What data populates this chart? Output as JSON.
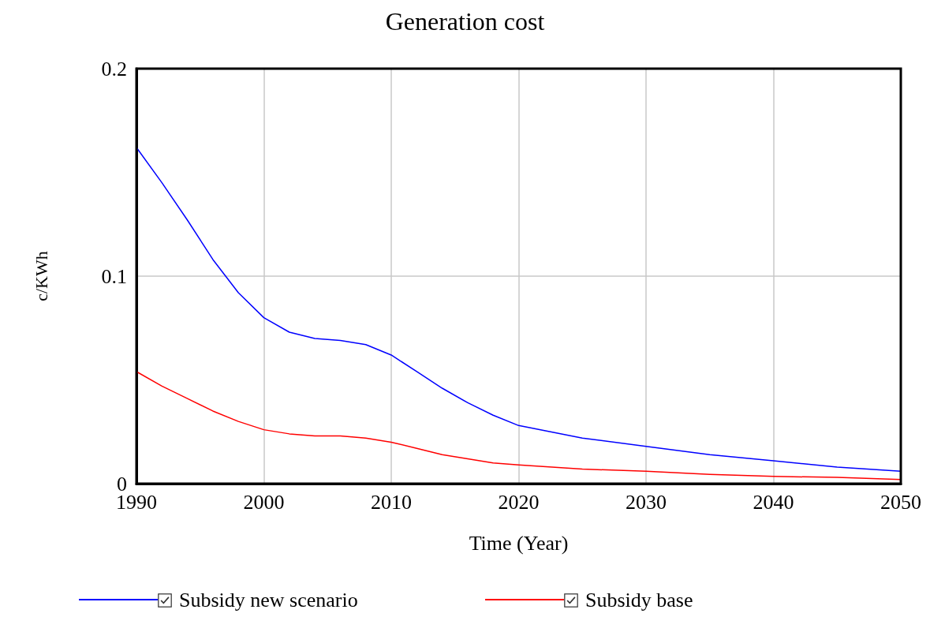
{
  "chart_data": {
    "type": "line",
    "title": "Generation cost",
    "xlabel": "Time (Year)",
    "ylabel": "c/KWh",
    "xlim": [
      1990,
      2050
    ],
    "xticks": [
      1990,
      2000,
      2010,
      2020,
      2030,
      2040,
      2050
    ],
    "ylim": [
      0,
      0.2
    ],
    "yticks": [
      0,
      0.1,
      0.2
    ],
    "grid": true,
    "legend": "bottom",
    "marker": "none",
    "line_style": "solid",
    "x": [
      1990,
      1992,
      1994,
      1996,
      1998,
      2000,
      2002,
      2004,
      2006,
      2008,
      2010,
      2012,
      2014,
      2016,
      2018,
      2020,
      2025,
      2030,
      2035,
      2040,
      2045,
      2050
    ],
    "series": [
      {
        "name": "Subsidy new scenario",
        "color": "#0000ff",
        "values": [
          0.162,
          0.145,
          0.127,
          0.108,
          0.092,
          0.08,
          0.073,
          0.07,
          0.069,
          0.067,
          0.062,
          0.054,
          0.046,
          0.039,
          0.033,
          0.028,
          0.022,
          0.018,
          0.014,
          0.011,
          0.008,
          0.006
        ]
      },
      {
        "name": "Subsidy base",
        "color": "#ff0000",
        "values": [
          0.054,
          0.047,
          0.041,
          0.035,
          0.03,
          0.026,
          0.024,
          0.023,
          0.023,
          0.022,
          0.02,
          0.017,
          0.014,
          0.012,
          0.01,
          0.009,
          0.007,
          0.006,
          0.0045,
          0.0035,
          0.003,
          0.002
        ]
      }
    ]
  }
}
